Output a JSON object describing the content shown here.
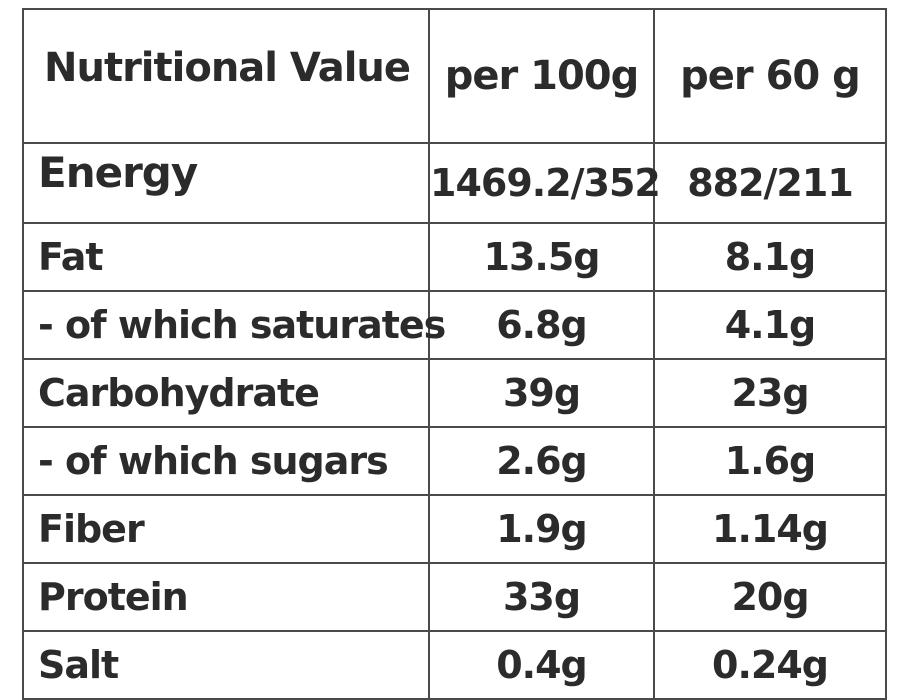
{
  "table": {
    "headers": [
      "Nutritional Value",
      "per 100g",
      "per 60 g"
    ],
    "rows": [
      {
        "label": "Energy",
        "per_100g": "1469.2/352",
        "per_60g": "882/211"
      },
      {
        "label": "Fat",
        "per_100g": "13.5g",
        "per_60g": "8.1g"
      },
      {
        "label": "- of which saturates",
        "per_100g": "6.8g",
        "per_60g": "4.1g"
      },
      {
        "label": "Carbohydrate",
        "per_100g": "39g",
        "per_60g": "23g"
      },
      {
        "label": "- of which sugars",
        "per_100g": "2.6g",
        "per_60g": "1.6g"
      },
      {
        "label": "Fiber",
        "per_100g": "1.9g",
        "per_60g": "1.14g"
      },
      {
        "label": "Protein",
        "per_100g": "33g",
        "per_60g": "20g"
      },
      {
        "label": "Salt",
        "per_100g": "0.4g",
        "per_60g": "0.24g"
      }
    ]
  }
}
